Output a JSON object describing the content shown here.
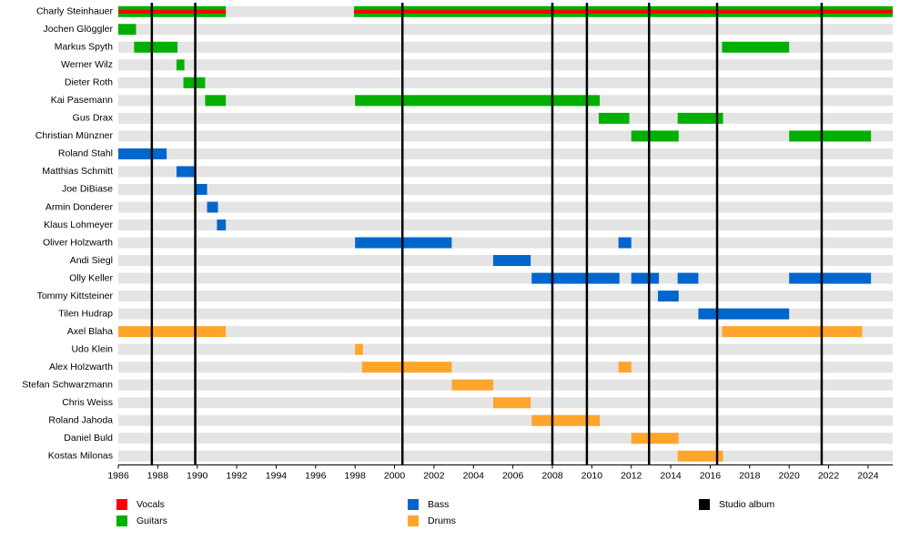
{
  "chart_data": {
    "type": "timeline",
    "roles": [
      {
        "name": "Vocals",
        "color": "#ff0000"
      },
      {
        "name": "Guitars",
        "color": "#00b000"
      },
      {
        "name": "Bass",
        "color": "#0066cc"
      },
      {
        "name": "Drums",
        "color": "#ffa52c"
      }
    ],
    "members": [
      {
        "name": "Charly Steinhauer",
        "roles": [
          "Guitars",
          "Vocals"
        ],
        "periods": [
          [
            1986,
            1991.45
          ],
          [
            1997.95,
            2025.25
          ]
        ]
      },
      {
        "name": "Jochen Glöggler",
        "roles": [
          "Guitars"
        ],
        "periods": [
          [
            1986,
            1986.9
          ]
        ]
      },
      {
        "name": "Markus Spyth",
        "roles": [
          "Guitars"
        ],
        "periods": [
          [
            1986.8,
            1989
          ],
          [
            2016.6,
            2020
          ]
        ]
      },
      {
        "name": "Werner Wilz",
        "roles": [
          "Guitars"
        ],
        "periods": [
          [
            1988.95,
            1989.35
          ]
        ]
      },
      {
        "name": "Dieter Roth",
        "roles": [
          "Guitars"
        ],
        "periods": [
          [
            1989.3,
            1990.4
          ]
        ]
      },
      {
        "name": "Kai Pasemann",
        "roles": [
          "Guitars"
        ],
        "periods": [
          [
            1990.4,
            1991.45
          ],
          [
            1998,
            2010.4
          ]
        ]
      },
      {
        "name": "Gus Drax",
        "roles": [
          "Guitars"
        ],
        "periods": [
          [
            2010.35,
            2011.9
          ],
          [
            2014.35,
            2016.65
          ]
        ]
      },
      {
        "name": "Christian Münzner",
        "roles": [
          "Guitars"
        ],
        "periods": [
          [
            2012,
            2014.4
          ],
          [
            2020,
            2024.15
          ]
        ]
      },
      {
        "name": "Roland Stahl",
        "roles": [
          "Bass"
        ],
        "periods": [
          [
            1986,
            1988.45
          ]
        ]
      },
      {
        "name": "Matthias Schmitt",
        "roles": [
          "Bass"
        ],
        "periods": [
          [
            1988.95,
            1989.9
          ]
        ]
      },
      {
        "name": "Joe DiBiase",
        "roles": [
          "Bass"
        ],
        "periods": [
          [
            1989.9,
            1990.5
          ]
        ]
      },
      {
        "name": "Armin Donderer",
        "roles": [
          "Bass"
        ],
        "periods": [
          [
            1990.5,
            1991.05
          ]
        ]
      },
      {
        "name": "Klaus Lohmeyer",
        "roles": [
          "Bass"
        ],
        "periods": [
          [
            1991,
            1991.45
          ]
        ]
      },
      {
        "name": "Oliver Holzwarth",
        "roles": [
          "Bass"
        ],
        "periods": [
          [
            1998,
            2002.9
          ],
          [
            2011.35,
            2012
          ]
        ]
      },
      {
        "name": "Andi Siegl",
        "roles": [
          "Bass"
        ],
        "periods": [
          [
            2005,
            2006.9
          ]
        ]
      },
      {
        "name": "Olly Keller",
        "roles": [
          "Bass"
        ],
        "periods": [
          [
            2006.95,
            2011.4
          ],
          [
            2012,
            2013.4
          ],
          [
            2014.35,
            2015.4
          ],
          [
            2020,
            2024.15
          ]
        ]
      },
      {
        "name": "Tommy Kittsteiner",
        "roles": [
          "Bass"
        ],
        "periods": [
          [
            2013.35,
            2014.4
          ]
        ]
      },
      {
        "name": "Tilen Hudrap",
        "roles": [
          "Bass"
        ],
        "periods": [
          [
            2015.4,
            2020
          ]
        ]
      },
      {
        "name": "Axel Blaha",
        "roles": [
          "Drums"
        ],
        "periods": [
          [
            1986,
            1991.45
          ],
          [
            2016.6,
            2023.7
          ]
        ]
      },
      {
        "name": "Udo Klein",
        "roles": [
          "Drums"
        ],
        "periods": [
          [
            1998,
            1998.4
          ]
        ]
      },
      {
        "name": "Alex Holzwarth",
        "roles": [
          "Drums"
        ],
        "periods": [
          [
            1998.35,
            2002.9
          ],
          [
            2011.35,
            2012
          ]
        ]
      },
      {
        "name": "Stefan Schwarzmann",
        "roles": [
          "Drums"
        ],
        "periods": [
          [
            2002.9,
            2005
          ]
        ]
      },
      {
        "name": "Chris Weiss",
        "roles": [
          "Drums"
        ],
        "periods": [
          [
            2005,
            2006.9
          ]
        ]
      },
      {
        "name": "Roland Jahoda",
        "roles": [
          "Drums"
        ],
        "periods": [
          [
            2006.95,
            2010.4
          ]
        ]
      },
      {
        "name": "Daniel Buld",
        "roles": [
          "Drums"
        ],
        "periods": [
          [
            2012,
            2014.4
          ]
        ]
      },
      {
        "name": "Kostas Milonas",
        "roles": [
          "Drums"
        ],
        "periods": [
          [
            2014.35,
            2016.65
          ]
        ]
      }
    ],
    "albums": {
      "name": "Studio album",
      "color": "#000000",
      "values": [
        1987.7,
        1989.9,
        2000.4,
        2008.0,
        2009.75,
        2012.9,
        2016.35,
        2021.65
      ]
    },
    "xlim": [
      1986,
      2025.25
    ],
    "xticks": [
      1986,
      1988,
      1990,
      1992,
      1994,
      1996,
      1998,
      2000,
      2002,
      2004,
      2006,
      2008,
      2010,
      2012,
      2014,
      2016,
      2018,
      2020,
      2022,
      2024
    ]
  }
}
